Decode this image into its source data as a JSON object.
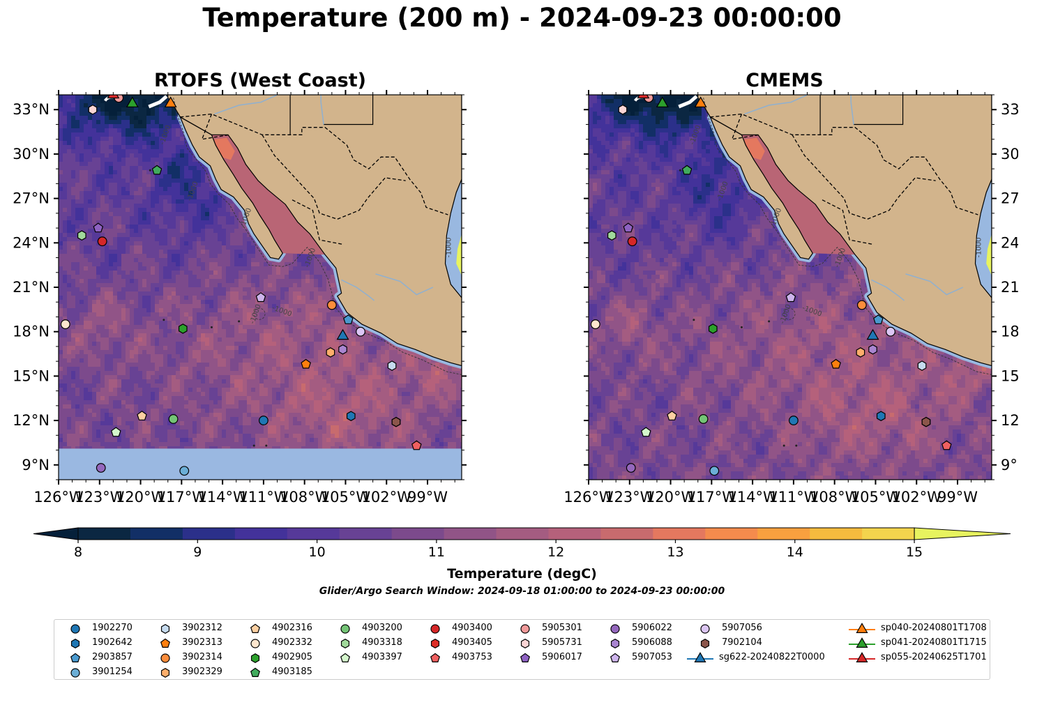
{
  "title": "Temperature (200 m) - 2024-09-23 00:00:00",
  "panels": [
    {
      "title": "RTOFS (West Coast)",
      "side": "left",
      "mask_south": true
    },
    {
      "title": "CMEMS",
      "side": "right",
      "mask_south": false
    }
  ],
  "map": {
    "lon_range": [
      -126,
      -96.5
    ],
    "lat_range": [
      8,
      34
    ],
    "lon_ticks": [
      {
        "v": -126,
        "label": "126°W"
      },
      {
        "v": -123,
        "label": "123°W"
      },
      {
        "v": -120,
        "label": "120°W"
      },
      {
        "v": -117,
        "label": "117°W"
      },
      {
        "v": -114,
        "label": "114°W"
      },
      {
        "v": -111,
        "label": "111°W"
      },
      {
        "v": -108,
        "label": "108°W"
      },
      {
        "v": -105,
        "label": "105°W"
      },
      {
        "v": -102,
        "label": "102°W"
      },
      {
        "v": -99,
        "label": "99°W"
      }
    ],
    "lat_ticks": [
      {
        "v": 9,
        "label": "9°N"
      },
      {
        "v": 12,
        "label": "12°N"
      },
      {
        "v": 15,
        "label": "15°N"
      },
      {
        "v": 18,
        "label": "18°N"
      },
      {
        "v": 21,
        "label": "21°N"
      },
      {
        "v": 24,
        "label": "24°N"
      },
      {
        "v": 27,
        "label": "27°N"
      },
      {
        "v": 30,
        "label": "30°N"
      },
      {
        "v": 33,
        "label": "33°N"
      }
    ],
    "contour_label": "-1000",
    "colors": {
      "land": "#d2b48c",
      "shelf": "#99b8e0",
      "mask": "#9ab8e1",
      "river": "#8fb0d0"
    }
  },
  "colorbar": {
    "label": "Temperature (degC)",
    "min": 8,
    "max": 15.5,
    "step": 0.5,
    "ticks": [
      "8",
      "9",
      "10",
      "11",
      "12",
      "13",
      "14",
      "15"
    ],
    "colors": [
      "#0b2742",
      "#122f66",
      "#2b308a",
      "#43329a",
      "#563999",
      "#684294",
      "#7c4a8c",
      "#915487",
      "#a45c81",
      "#b5617b",
      "#c86b6e",
      "#e4785f",
      "#f48b4d",
      "#f9a03f",
      "#f6bb3e",
      "#f3d44d",
      "#e7f35f"
    ],
    "under_color": "#05203a"
  },
  "subtitle": "Glider/Argo Search Window: 2024-09-18 01:00:00 to 2024-09-23 00:00:00",
  "legend": [
    {
      "name": "1902270",
      "marker": "circle",
      "color": "#1f77b4"
    },
    {
      "name": "1902642",
      "marker": "hexagon",
      "color": "#1f77b4"
    },
    {
      "name": "2903857",
      "marker": "pentagon",
      "color": "#4a9acf"
    },
    {
      "name": "3901254",
      "marker": "circle",
      "color": "#6baed6"
    },
    {
      "name": "3902312",
      "marker": "hexagon",
      "color": "#c6dbef"
    },
    {
      "name": "3902313",
      "marker": "pentagon",
      "color": "#ff7f0e"
    },
    {
      "name": "3902314",
      "marker": "circle",
      "color": "#fd8d3c"
    },
    {
      "name": "3902329",
      "marker": "hexagon",
      "color": "#fdae6b"
    },
    {
      "name": "4902316",
      "marker": "pentagon",
      "color": "#fdd0a2"
    },
    {
      "name": "4902332",
      "marker": "circle",
      "color": "#fee6ce"
    },
    {
      "name": "4902905",
      "marker": "hexagon",
      "color": "#2ca02c"
    },
    {
      "name": "4903185",
      "marker": "pentagon",
      "color": "#41ab5d"
    },
    {
      "name": "4903200",
      "marker": "circle",
      "color": "#74c476"
    },
    {
      "name": "4903318",
      "marker": "hexagon",
      "color": "#a1d99b"
    },
    {
      "name": "4903397",
      "marker": "pentagon",
      "color": "#d4f7cc"
    },
    {
      "name": "4903400",
      "marker": "circle",
      "color": "#d62728"
    },
    {
      "name": "4903405",
      "marker": "hexagon",
      "color": "#de2d26"
    },
    {
      "name": "4903753",
      "marker": "pentagon",
      "color": "#ef6060"
    },
    {
      "name": "5905301",
      "marker": "circle",
      "color": "#f29a9a"
    },
    {
      "name": "5905731",
      "marker": "hexagon",
      "color": "#fcd5d5"
    },
    {
      "name": "5906017",
      "marker": "pentagon",
      "color": "#8e62c2"
    },
    {
      "name": "5906022",
      "marker": "circle",
      "color": "#9467bd"
    },
    {
      "name": "5906088",
      "marker": "hexagon",
      "color": "#a985d0"
    },
    {
      "name": "5907053",
      "marker": "pentagon",
      "color": "#cdb4ec"
    },
    {
      "name": "5907056",
      "marker": "circle",
      "color": "#dcc6f5"
    },
    {
      "name": "7902104",
      "marker": "hexagon",
      "color": "#8c564b"
    },
    {
      "name": "sg622-20240822T0000",
      "marker": "triangle-line",
      "color": "#1f77b4"
    },
    {
      "name": "sp040-20240801T1708",
      "marker": "triangle-line",
      "color": "#ff7f0e"
    },
    {
      "name": "sp041-20240801T1715",
      "marker": "triangle-line",
      "color": "#2ca02c"
    },
    {
      "name": "sp055-20240625T1701",
      "marker": "triangle-line",
      "color": "#d62728"
    }
  ],
  "stations": [
    {
      "name": "1902270",
      "lon": -111.0,
      "lat": 12.0
    },
    {
      "name": "1902642",
      "lon": -104.6,
      "lat": 12.3
    },
    {
      "name": "2903857",
      "lon": -104.8,
      "lat": 18.8
    },
    {
      "name": "3901254",
      "lon": -116.8,
      "lat": 8.6
    },
    {
      "name": "3902312",
      "lon": -101.6,
      "lat": 15.7
    },
    {
      "name": "3902313",
      "lon": -107.9,
      "lat": 15.8
    },
    {
      "name": "3902314",
      "lon": -106.0,
      "lat": 19.8
    },
    {
      "name": "3902329",
      "lon": -106.1,
      "lat": 16.6
    },
    {
      "name": "4902316",
      "lon": -119.9,
      "lat": 12.3
    },
    {
      "name": "4902332",
      "lon": -125.5,
      "lat": 18.5
    },
    {
      "name": "4902905",
      "lon": -116.9,
      "lat": 18.2
    },
    {
      "name": "4903185",
      "lon": -118.8,
      "lat": 28.9
    },
    {
      "name": "4903200",
      "lon": -117.6,
      "lat": 12.1
    },
    {
      "name": "4903318",
      "lon": -124.3,
      "lat": 24.5
    },
    {
      "name": "4903397",
      "lon": -121.8,
      "lat": 11.2
    },
    {
      "name": "4903400",
      "lon": -122.8,
      "lat": 24.1
    },
    {
      "name": "4903405",
      "lon": -101.3,
      "lat": 11.9
    },
    {
      "name": "4903753",
      "lon": -99.8,
      "lat": 10.3
    },
    {
      "name": "5905301",
      "lon": -121.6,
      "lat": 33.8
    },
    {
      "name": "5905731",
      "lon": -123.5,
      "lat": 33.0
    },
    {
      "name": "5906017",
      "lon": -123.1,
      "lat": 25.0
    },
    {
      "name": "5906022",
      "lon": -122.9,
      "lat": 8.8
    },
    {
      "name": "5906088",
      "lon": -105.2,
      "lat": 16.8
    },
    {
      "name": "5907053",
      "lon": -111.2,
      "lat": 20.3
    },
    {
      "name": "5907056",
      "lon": -103.9,
      "lat": 18.0
    },
    {
      "name": "7902104",
      "lon": -101.3,
      "lat": 11.9
    },
    {
      "name": "sg622-20240822T0000",
      "lon": -105.2,
      "lat": 17.7
    },
    {
      "name": "sp040-20240801T1708",
      "lon": -117.8,
      "lat": 33.4
    },
    {
      "name": "sp041-20240801T1715",
      "lon": -120.6,
      "lat": 33.4
    },
    {
      "name": "sp055-20240625T1701",
      "lon": -122.0,
      "lat": 34.0
    }
  ]
}
